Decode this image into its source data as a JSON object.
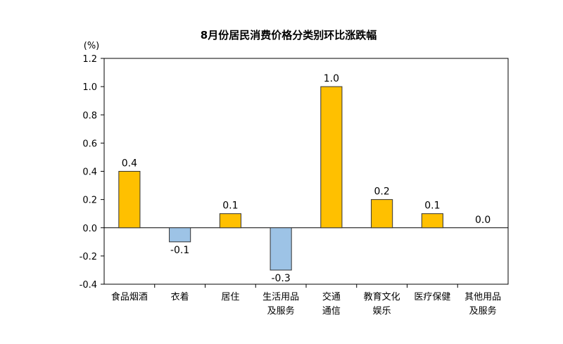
{
  "chart_data": {
    "type": "bar",
    "title": "8月份居民消费价格分类别环比涨跌幅",
    "unit": "(%)",
    "categories": [
      [
        "食品烟酒"
      ],
      [
        "衣着"
      ],
      [
        "居住"
      ],
      [
        "生活用品",
        "及服务"
      ],
      [
        "交通",
        "通信"
      ],
      [
        "教育文化",
        "娱乐"
      ],
      [
        "医疗保健"
      ],
      [
        "其他用品",
        "及服务"
      ]
    ],
    "values": [
      0.4,
      -0.1,
      0.1,
      -0.3,
      1.0,
      0.2,
      0.1,
      0.0
    ],
    "value_labels": [
      "0.4",
      "-0.1",
      "0.1",
      "-0.3",
      "1.0",
      "0.2",
      "0.1",
      "0.0"
    ],
    "yticks": [
      "1.2",
      "1.0",
      "0.8",
      "0.6",
      "0.4",
      "0.2",
      "0.0",
      "-0.2",
      "-0.4"
    ],
    "ylim": [
      -0.4,
      1.2
    ],
    "grid": false,
    "colors": {
      "positive": "#FFC000",
      "negative": "#9DC3E6",
      "bar_stroke": "#333333",
      "axis": "#000000"
    }
  }
}
